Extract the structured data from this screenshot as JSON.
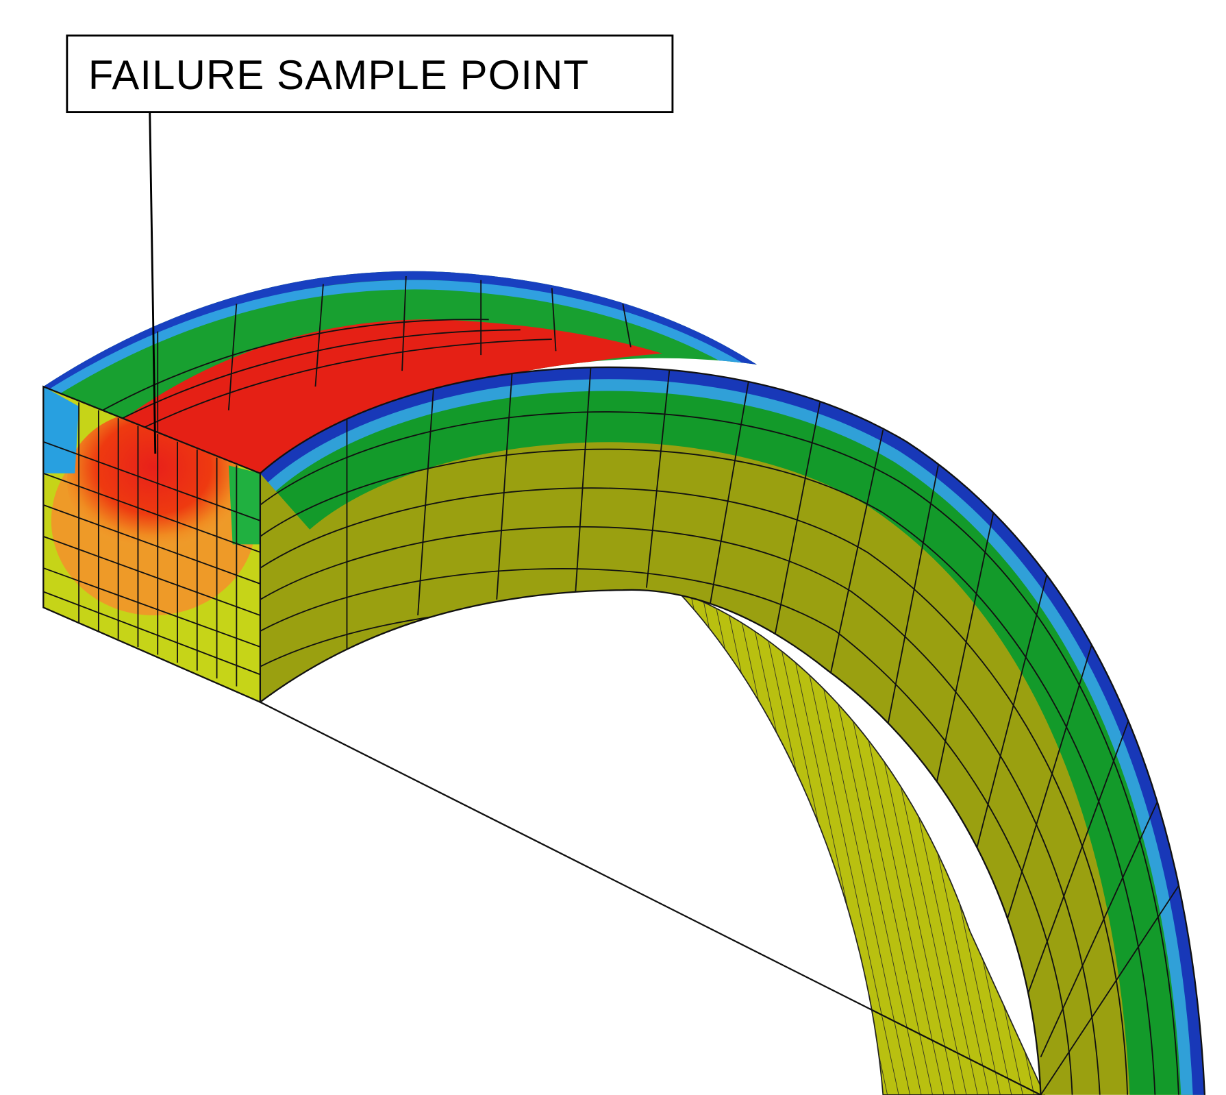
{
  "annotation": {
    "label": "FAILURE SAMPLE POINT"
  }
}
